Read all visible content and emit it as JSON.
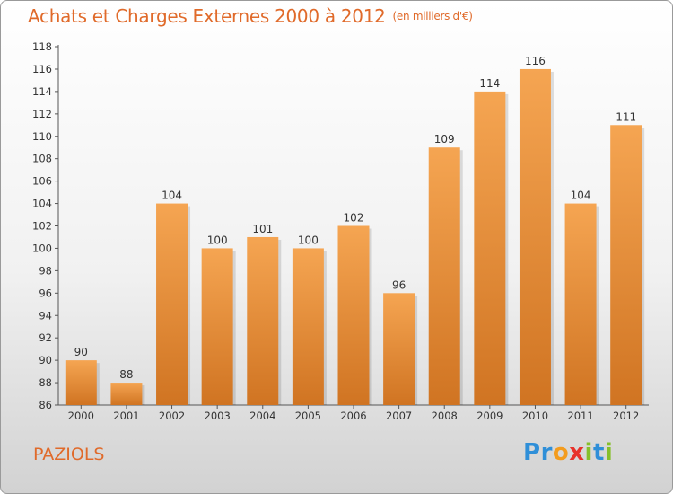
{
  "chart_data": {
    "type": "bar",
    "title": "Achats et Charges Externes 2000 à 2012",
    "subtitle": "(en milliers d'€)",
    "categories": [
      "2000",
      "2001",
      "2002",
      "2003",
      "2004",
      "2005",
      "2006",
      "2007",
      "2008",
      "2009",
      "2010",
      "2011",
      "2012"
    ],
    "values": [
      90,
      88,
      104,
      100,
      101,
      100,
      102,
      96,
      109,
      114,
      116,
      104,
      111
    ],
    "ylim": [
      86,
      118
    ],
    "yticks": [
      86,
      88,
      90,
      92,
      94,
      96,
      98,
      100,
      102,
      104,
      106,
      108,
      110,
      112,
      114,
      116,
      118
    ],
    "xlabel": "",
    "ylabel": "",
    "grid": false,
    "colors": {
      "bar_top": "#f5a552",
      "bar_bottom": "#d07422",
      "text": "#e06a2a"
    }
  },
  "commune": "PAZIOLS",
  "logo": {
    "letters": [
      "P",
      "r",
      "o",
      "x",
      "i",
      "t",
      "i"
    ],
    "colors": [
      "#2f8fd8",
      "#2f8fd8",
      "#f39c1e",
      "#e8312a",
      "#86bf2a",
      "#2f8fd8",
      "#86bf2a"
    ]
  }
}
